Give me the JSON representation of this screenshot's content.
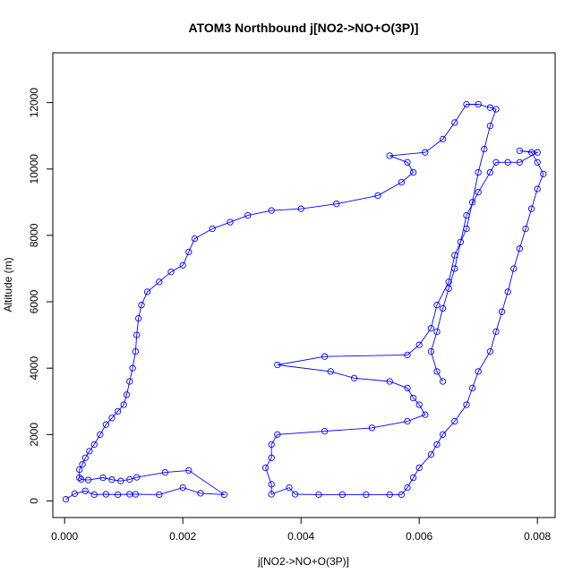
{
  "chart_data": {
    "type": "scatter",
    "title": "ATOM3 Northbound j[NO2->NO+O(3P)]",
    "xlabel": "j[NO2->NO+O(3P)]",
    "ylabel": "Altitude (m)",
    "xlim": [
      -0.0002,
      0.0083
    ],
    "ylim": [
      -500,
      13500
    ],
    "xticks": [
      0.0,
      0.002,
      0.004,
      0.006,
      0.008
    ],
    "xtick_labels": [
      "0.000",
      "0.002",
      "0.004",
      "0.006",
      "0.008"
    ],
    "yticks": [
      0,
      2000,
      4000,
      6000,
      8000,
      10000,
      12000
    ],
    "ytick_labels": [
      "0",
      "2000",
      "4000",
      "6000",
      "8000",
      "10000",
      "12000"
    ],
    "grid": false,
    "legend": "none",
    "marker": "open-circle",
    "color": "#0000ff",
    "series": [
      {
        "points": [
          [
            2e-05,
            50
          ],
          [
            0.00017,
            220
          ],
          [
            0.00035,
            300
          ],
          [
            0.0005,
            190
          ],
          [
            0.0007,
            200
          ],
          [
            0.0009,
            190
          ],
          [
            0.0011,
            200
          ],
          [
            0.0012,
            200
          ],
          [
            0.0016,
            190
          ],
          [
            0.002,
            400
          ],
          [
            0.0023,
            230
          ],
          [
            0.0027,
            190
          ],
          [
            0.0021,
            920
          ],
          [
            0.0017,
            860
          ],
          [
            0.00122,
            710
          ],
          [
            0.0011,
            650
          ],
          [
            0.00095,
            600
          ],
          [
            0.0008,
            640
          ],
          [
            0.00065,
            700
          ],
          [
            0.0004,
            630
          ],
          [
            0.00028,
            650
          ],
          [
            0.00025,
            700
          ],
          [
            0.00025,
            940
          ],
          [
            0.0003,
            1100
          ],
          [
            0.00035,
            1300
          ],
          [
            0.00042,
            1500
          ],
          [
            0.0005,
            1700
          ],
          [
            0.0006,
            2000
          ],
          [
            0.0007,
            2300
          ],
          [
            0.0008,
            2500
          ],
          [
            0.0009,
            2700
          ],
          [
            0.001,
            2900
          ],
          [
            0.00105,
            3200
          ],
          [
            0.0011,
            3600
          ],
          [
            0.00115,
            4000
          ],
          [
            0.0012,
            4500
          ],
          [
            0.00122,
            5000
          ],
          [
            0.00125,
            5500
          ],
          [
            0.0013,
            5900
          ],
          [
            0.0014,
            6300
          ],
          [
            0.0016,
            6600
          ],
          [
            0.0018,
            6900
          ],
          [
            0.002,
            7100
          ],
          [
            0.0021,
            7500
          ],
          [
            0.0022,
            7900
          ],
          [
            0.0025,
            8200
          ],
          [
            0.0028,
            8400
          ],
          [
            0.0031,
            8600
          ],
          [
            0.0035,
            8750
          ],
          [
            0.004,
            8800
          ],
          [
            0.0046,
            8950
          ],
          [
            0.0053,
            9200
          ],
          [
            0.0057,
            9600
          ],
          [
            0.0059,
            9900
          ],
          [
            0.0058,
            10200
          ],
          [
            0.0055,
            10400
          ],
          [
            0.0061,
            10500
          ],
          [
            0.0064,
            10900
          ],
          [
            0.0066,
            11400
          ],
          [
            0.0068,
            11950
          ],
          [
            0.007,
            11950
          ],
          [
            0.0072,
            11850
          ],
          [
            0.0073,
            11800
          ],
          [
            0.0072,
            11300
          ],
          [
            0.0071,
            10600
          ],
          [
            0.007,
            9900
          ],
          [
            0.0069,
            9000
          ],
          [
            0.0068,
            8200
          ],
          [
            0.0066,
            7400
          ],
          [
            0.0065,
            6600
          ],
          [
            0.0063,
            5900
          ],
          [
            0.0062,
            5200
          ],
          [
            0.006,
            4700
          ],
          [
            0.0058,
            4400
          ],
          [
            0.0044,
            4350
          ],
          [
            0.0036,
            4100
          ],
          [
            0.0045,
            3900
          ],
          [
            0.0049,
            3700
          ],
          [
            0.0055,
            3600
          ],
          [
            0.0058,
            3400
          ],
          [
            0.0059,
            3100
          ],
          [
            0.006,
            2900
          ],
          [
            0.0061,
            2600
          ],
          [
            0.0058,
            2400
          ],
          [
            0.0052,
            2200
          ],
          [
            0.0044,
            2100
          ],
          [
            0.0036,
            2000
          ],
          [
            0.0035,
            1700
          ],
          [
            0.0035,
            1300
          ],
          [
            0.0034,
            1000
          ],
          [
            0.0035,
            500
          ],
          [
            0.0035,
            200
          ],
          [
            0.0038,
            400
          ],
          [
            0.0039,
            200
          ],
          [
            0.0043,
            190
          ],
          [
            0.0047,
            190
          ],
          [
            0.0051,
            190
          ],
          [
            0.0055,
            190
          ],
          [
            0.0057,
            190
          ],
          [
            0.0058,
            400
          ],
          [
            0.0059,
            700
          ],
          [
            0.006,
            1000
          ],
          [
            0.0062,
            1400
          ],
          [
            0.0063,
            1700
          ],
          [
            0.0064,
            2000
          ],
          [
            0.0066,
            2400
          ],
          [
            0.0068,
            2900
          ],
          [
            0.0069,
            3400
          ],
          [
            0.007,
            3900
          ],
          [
            0.0072,
            4500
          ],
          [
            0.0073,
            5100
          ],
          [
            0.0074,
            5700
          ],
          [
            0.0075,
            6300
          ],
          [
            0.0076,
            7000
          ],
          [
            0.0077,
            7600
          ],
          [
            0.0078,
            8200
          ],
          [
            0.0079,
            8800
          ],
          [
            0.008,
            9400
          ],
          [
            0.0081,
            9850
          ],
          [
            0.008,
            10200
          ],
          [
            0.0079,
            10500
          ],
          [
            0.0077,
            10550
          ],
          [
            0.008,
            10500
          ],
          [
            0.0077,
            10200
          ],
          [
            0.0075,
            10200
          ],
          [
            0.0073,
            10200
          ],
          [
            0.0072,
            9900
          ],
          [
            0.007,
            9300
          ],
          [
            0.0068,
            8600
          ],
          [
            0.0067,
            7800
          ],
          [
            0.0066,
            7000
          ],
          [
            0.0065,
            6400
          ],
          [
            0.0064,
            5800
          ],
          [
            0.0063,
            5100
          ],
          [
            0.0062,
            4500
          ],
          [
            0.0063,
            3900
          ],
          [
            0.0064,
            3600
          ]
        ]
      }
    ]
  }
}
